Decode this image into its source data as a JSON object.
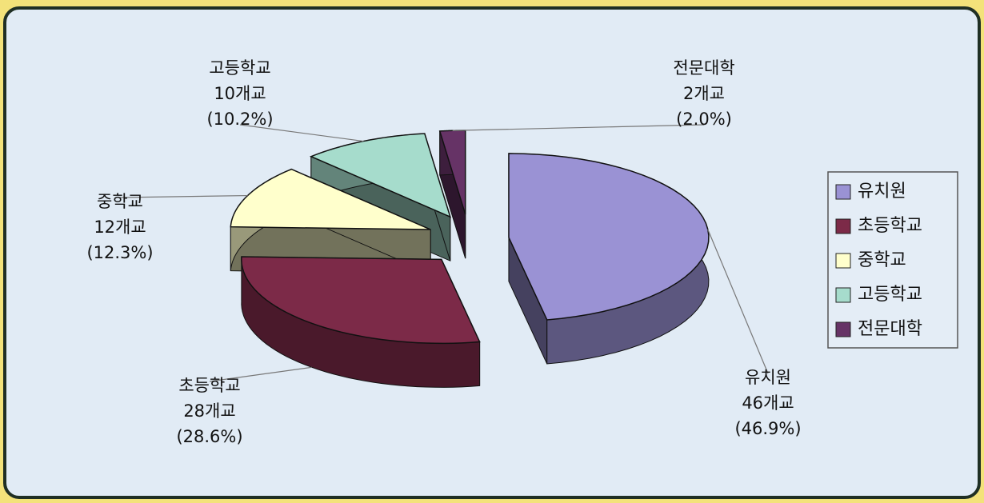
{
  "chart_data": {
    "type": "pie",
    "categories": [
      "유치원",
      "초등학교",
      "중학교",
      "고등학교",
      "전문대학"
    ],
    "values": [
      46,
      28,
      12,
      10,
      2
    ],
    "value_labels": [
      "46개교",
      "28개교",
      "12개교",
      "10개교",
      "2개교"
    ],
    "percentages": [
      46.9,
      28.6,
      12.3,
      10.2,
      2.0
    ],
    "percentage_labels": [
      "(46.9%)",
      "(28.6%)",
      "(12.3%)",
      "(10.2%)",
      "(2.0%)"
    ],
    "colors": [
      "#9a92d4",
      "#7c2a48",
      "#ffffcc",
      "#a6dccc",
      "#663366"
    ],
    "legend": "right"
  }
}
